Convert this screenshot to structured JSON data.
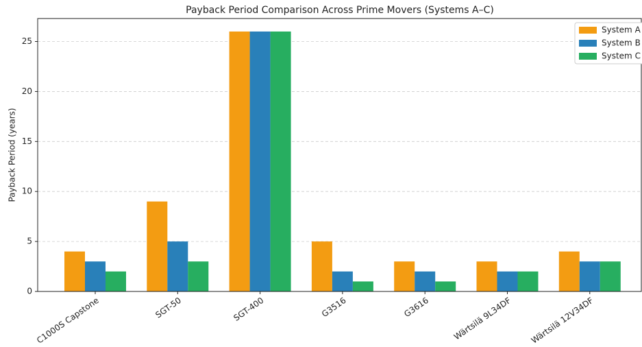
{
  "chart_data": {
    "type": "bar",
    "title": "Payback Period Comparison Across Prime Movers (Systems A–C)",
    "y_label": "Payback Period (years)",
    "categories": [
      "C1000S Capstone",
      "SGT-50",
      "SGT-400",
      "G3516",
      "G3616",
      "Wärtsilä 9L34DF",
      "Wärtsilä 12V34DF"
    ],
    "series": [
      {
        "name": "System A",
        "color": "#f39c12",
        "values": [
          4,
          9,
          26,
          5,
          3,
          3,
          4
        ]
      },
      {
        "name": "System B",
        "color": "#2980b9",
        "values": [
          3,
          5,
          26,
          2,
          2,
          2,
          3
        ]
      },
      {
        "name": "System C",
        "color": "#27ae60",
        "values": [
          2,
          3,
          26,
          1,
          1,
          2,
          3
        ]
      }
    ],
    "ylim": [
      0,
      27.3
    ],
    "yticks": [
      0,
      5,
      10,
      15,
      20,
      25
    ],
    "grid": true,
    "legend": "upper right"
  }
}
